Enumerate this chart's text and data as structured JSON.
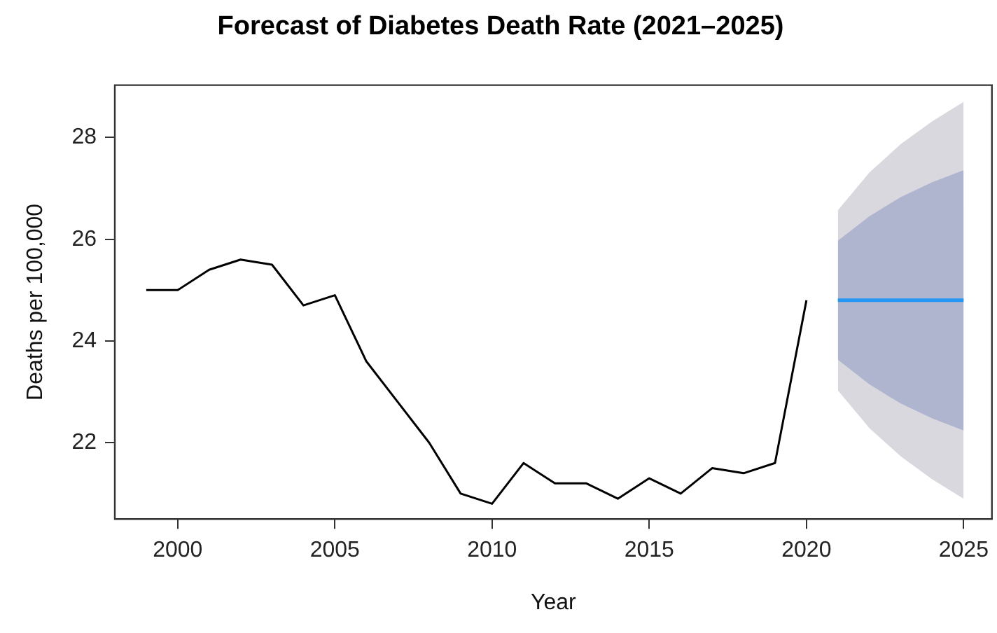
{
  "chart_data": {
    "type": "line",
    "title": "Forecast of Diabetes Death Rate (2021–2025)",
    "xlabel": "Year",
    "ylabel": "Deaths per 100,000",
    "xlim": [
      1998,
      2025.9
    ],
    "xticks": [
      2000,
      2005,
      2010,
      2015,
      2020,
      2025
    ],
    "ylim": [
      20.5,
      29.03
    ],
    "yticks": [
      22,
      24,
      26,
      28
    ],
    "grid": false,
    "legend": false,
    "marker": "none",
    "line_style": "solid",
    "series": [
      {
        "color": "#000000",
        "x": [
          1999,
          2000,
          2001,
          2002,
          2003,
          2004,
          2005,
          2006,
          2007,
          2008,
          2009,
          2010,
          2011,
          2012,
          2013,
          2014,
          2015,
          2016,
          2017,
          2018,
          2019,
          2020
        ],
        "values": [
          25.0,
          25.0,
          25.4,
          25.6,
          25.5,
          24.7,
          24.9,
          23.6,
          22.8,
          22.0,
          21.0,
          20.8,
          21.6,
          21.2,
          21.2,
          20.9,
          21.3,
          21.0,
          21.5,
          21.4,
          21.6,
          24.8
        ]
      },
      {
        "type": "area",
        "color": "#d8d8de",
        "x": [
          2021,
          2022,
          2023,
          2024,
          2025
        ],
        "values": [
          null,
          null,
          null,
          null,
          null
        ],
        "lower": [
          23.03,
          22.29,
          21.73,
          21.28,
          20.9
        ],
        "upper": [
          26.57,
          27.31,
          27.87,
          28.32,
          28.7
        ]
      },
      {
        "type": "area",
        "color": "#b0b5cf",
        "x": [
          2021,
          2022,
          2023,
          2024,
          2025
        ],
        "values": [
          null,
          null,
          null,
          null,
          null
        ],
        "lower": [
          23.63,
          23.15,
          22.77,
          22.48,
          22.24
        ],
        "upper": [
          25.97,
          26.45,
          26.83,
          27.12,
          27.36
        ]
      },
      {
        "color": "#2196f3",
        "x": [
          2021,
          2022,
          2023,
          2024,
          2025
        ],
        "values": [
          24.8,
          24.8,
          24.8,
          24.8,
          24.8
        ]
      }
    ]
  }
}
